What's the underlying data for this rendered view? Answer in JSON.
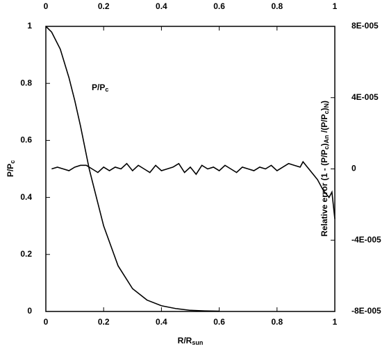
{
  "chart_data": {
    "type": "line",
    "xlabel": [
      "R/R",
      "sun"
    ],
    "ylabel": [
      "P/P",
      "c"
    ],
    "y2label": [
      "Relative error (1 - (P/P",
      "c",
      ")",
      "An",
      " /(P/P",
      "c",
      ")",
      "N",
      ")"
    ],
    "annotation": [
      "P/P",
      "c"
    ],
    "xlim": [
      0,
      1
    ],
    "xticks": [
      0,
      0.2,
      0.4,
      0.6,
      0.8,
      1
    ],
    "ylim": [
      0,
      1
    ],
    "yticks": [
      0,
      0.2,
      0.4,
      0.6,
      0.8,
      1
    ],
    "y2lim": [
      -8e-05,
      8e-05
    ],
    "y2ticks": [
      {
        "value": -8e-05,
        "label": "-8E-005"
      },
      {
        "value": -4e-05,
        "label": "-4E-005"
      },
      0,
      {
        "value": 4e-05,
        "label": "4E-005"
      },
      {
        "value": 8e-05,
        "label": "8E-005"
      }
    ],
    "series": [
      {
        "color": "#000000",
        "x": [
          0,
          0.02,
          0.05,
          0.08,
          0.1,
          0.12,
          0.15,
          0.18,
          0.2,
          0.25,
          0.3,
          0.35,
          0.4,
          0.45,
          0.5,
          0.55,
          0.6
        ],
        "values": [
          1,
          0.98,
          0.92,
          0.82,
          0.74,
          0.65,
          0.5,
          0.38,
          0.3,
          0.16,
          0.08,
          0.04,
          0.02,
          0.01,
          0.004,
          0.002,
          0.001
        ]
      },
      {
        "color": "#000000",
        "axis": "y2",
        "x": [
          0.02,
          0.04,
          0.06,
          0.08,
          0.1,
          0.12,
          0.14,
          0.16,
          0.18,
          0.2,
          0.22,
          0.24,
          0.26,
          0.28,
          0.3,
          0.32,
          0.34,
          0.36,
          0.38,
          0.4,
          0.42,
          0.44,
          0.46,
          0.48,
          0.5,
          0.52,
          0.54,
          0.56,
          0.58,
          0.6,
          0.62,
          0.64,
          0.66,
          0.68,
          0.7,
          0.72,
          0.74,
          0.76,
          0.78,
          0.8,
          0.82,
          0.84,
          0.86,
          0.88,
          0.89,
          0.9,
          0.92,
          0.94,
          0.96,
          0.98,
          0.99,
          1
        ],
        "values": [
          0,
          1e-06,
          0,
          -1e-06,
          1e-06,
          2e-06,
          2e-06,
          0,
          -2e-06,
          1e-06,
          -1e-06,
          1e-06,
          0,
          3e-06,
          -1e-06,
          2e-06,
          0,
          -2e-06,
          2e-06,
          -1e-06,
          0,
          1e-06,
          3e-06,
          -2e-06,
          1e-06,
          -3e-06,
          2e-06,
          0,
          1e-06,
          -1e-06,
          2e-06,
          0,
          -2e-06,
          1e-06,
          0,
          -1e-06,
          1e-06,
          0,
          2e-06,
          -1e-06,
          1e-06,
          3e-06,
          2e-06,
          1e-06,
          4e-06,
          2e-06,
          -2e-06,
          -6e-06,
          -1.2e-05,
          -1.6e-05,
          -1.3e-05,
          -2.8e-05
        ]
      }
    ]
  }
}
